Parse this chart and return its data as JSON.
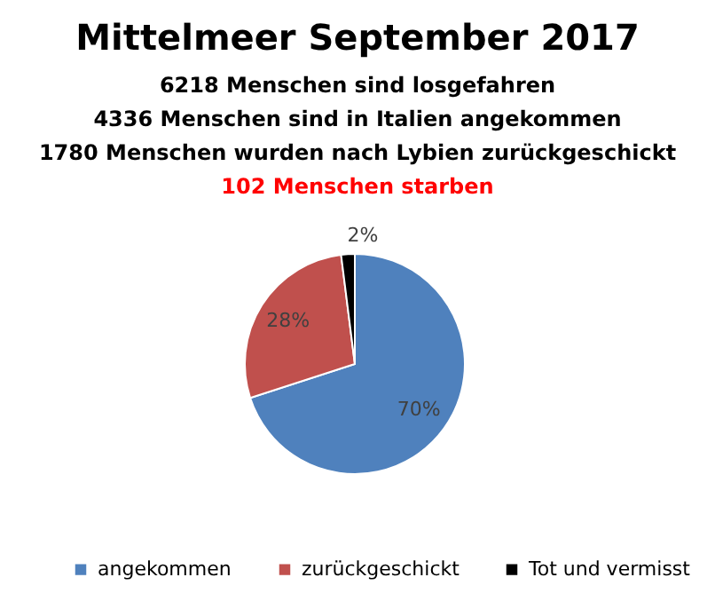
{
  "chart_data": {
    "type": "pie",
    "title": "Mittelmeer September 2017",
    "annotations": [
      "6218 Menschen sind losgefahren",
      "4336 Menschen sind in Italien angekommen",
      "1780 Menschen wurden nach Lybien zurückgeschickt",
      "102 Menschen starben"
    ],
    "categories": [
      "angekommen",
      "zurückgeschickt",
      "Tot und vermisst"
    ],
    "values": [
      70,
      28,
      2
    ],
    "colors": [
      "#4f81bd",
      "#c0504d",
      "#000000"
    ],
    "value_labels": [
      "70%",
      "28%",
      "2%"
    ],
    "legend": "bottom"
  }
}
